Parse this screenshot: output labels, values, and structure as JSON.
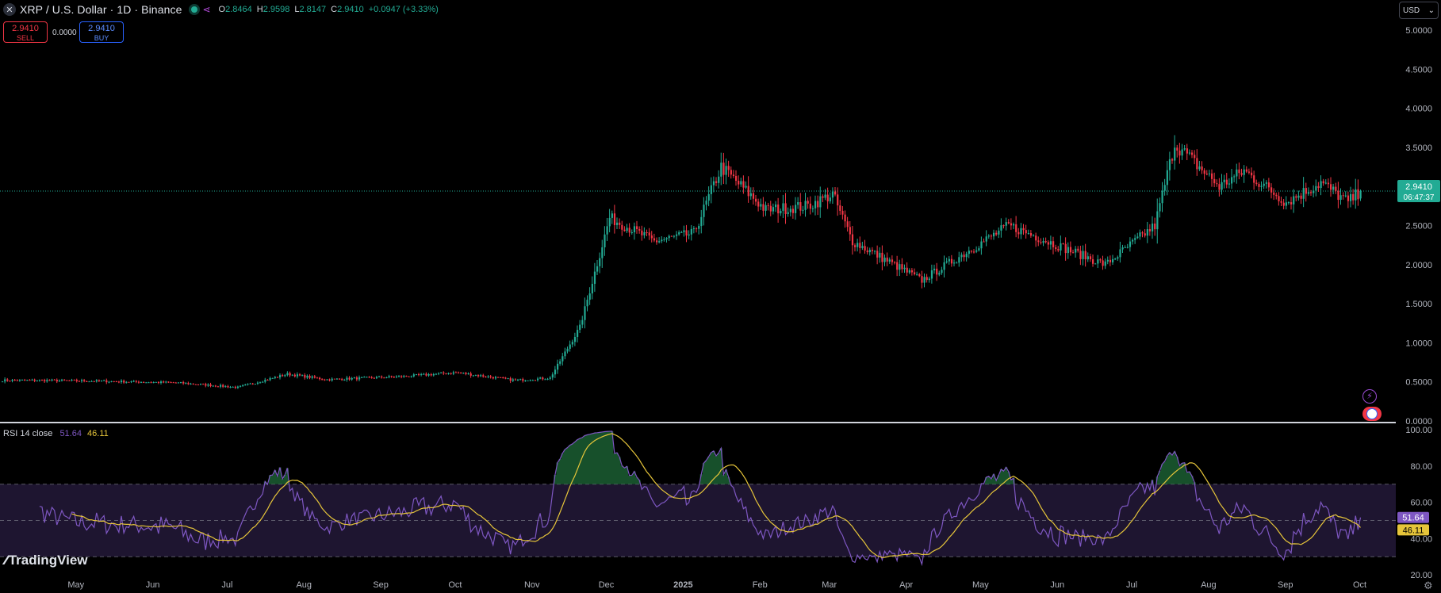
{
  "header": {
    "symbol_title": "XRP / U.S. Dollar · 1D · Binance",
    "ohlc": {
      "open_label": "O",
      "open": "2.8464",
      "high_label": "H",
      "high": "2.9598",
      "low_label": "L",
      "low": "2.8147",
      "close_label": "C",
      "close": "2.9410",
      "change": "+0.0947 (+3.33%)"
    }
  },
  "trade": {
    "sell_price": "2.9410",
    "sell_label": "SELL",
    "spread": "0.0000",
    "buy_price": "2.9410",
    "buy_label": "BUY"
  },
  "currency": {
    "label": "USD",
    "chevron": "⌄"
  },
  "price_axis": {
    "ticks": [
      "5.0000",
      "4.5000",
      "4.0000",
      "3.5000",
      "3.0000",
      "2.5000",
      "2.0000",
      "1.5000",
      "1.0000",
      "0.5000",
      "0.0000"
    ],
    "current_price": "2.9410",
    "countdown": "06:47:37"
  },
  "rsi": {
    "legend_title": "RSI 14 close",
    "value": "51.64",
    "ma_value": "46.11",
    "ticks": [
      "100.00",
      "80.00",
      "60.00",
      "40.00",
      "20.00"
    ]
  },
  "time_axis": {
    "labels": [
      "May",
      "Jun",
      "Jul",
      "Aug",
      "Sep",
      "Oct",
      "Nov",
      "Dec",
      "2025",
      "Feb",
      "Mar",
      "Apr",
      "May",
      "Jun",
      "Jul",
      "Aug",
      "Sep",
      "Oct"
    ]
  },
  "logo": {
    "text": "TradingView"
  },
  "icons": {
    "close": "close-icon",
    "live": "live-dot-icon",
    "share": "share-icon",
    "settings": "settings-icon",
    "bolt": "lightning-icon",
    "flag": "us-flag-icon",
    "logo": "tradingview-logo-icon"
  },
  "colors": {
    "up": "#22ab94",
    "down": "#f23645",
    "rsi": "#7e57c2",
    "rsi_ma": "#e6c53a",
    "rsi_band": "#1e1530",
    "price_label_bg": "#22ab94",
    "background": "#000000"
  },
  "chart_data": {
    "type": "candlestick",
    "symbol": "XRP / U.S. Dollar",
    "interval": "1D",
    "exchange": "Binance",
    "y_range": [
      0,
      5
    ],
    "x_range": [
      "2024-04",
      "2025-10"
    ],
    "close_path": [
      {
        "date": "2024-04-15",
        "price": 0.52
      },
      {
        "date": "2024-05-10",
        "price": 0.51
      },
      {
        "date": "2024-06-10",
        "price": 0.49
      },
      {
        "date": "2024-07-05",
        "price": 0.43
      },
      {
        "date": "2024-07-25",
        "price": 0.6
      },
      {
        "date": "2024-08-10",
        "price": 0.53
      },
      {
        "date": "2024-09-10",
        "price": 0.57
      },
      {
        "date": "2024-10-01",
        "price": 0.62
      },
      {
        "date": "2024-10-25",
        "price": 0.52
      },
      {
        "date": "2024-11-08",
        "price": 0.55
      },
      {
        "date": "2024-11-20",
        "price": 1.2
      },
      {
        "date": "2024-12-02",
        "price": 2.6
      },
      {
        "date": "2024-12-20",
        "price": 2.3
      },
      {
        "date": "2025-01-05",
        "price": 2.4
      },
      {
        "date": "2025-01-16",
        "price": 3.25
      },
      {
        "date": "2025-02-03",
        "price": 2.7
      },
      {
        "date": "2025-02-20",
        "price": 2.75
      },
      {
        "date": "2025-03-02",
        "price": 2.9
      },
      {
        "date": "2025-03-10",
        "price": 2.3
      },
      {
        "date": "2025-04-07",
        "price": 1.8
      },
      {
        "date": "2025-05-12",
        "price": 2.5
      },
      {
        "date": "2025-06-20",
        "price": 2.0
      },
      {
        "date": "2025-07-10",
        "price": 2.5
      },
      {
        "date": "2025-07-18",
        "price": 3.55
      },
      {
        "date": "2025-08-05",
        "price": 3.0
      },
      {
        "date": "2025-08-15",
        "price": 3.2
      },
      {
        "date": "2025-09-01",
        "price": 2.8
      },
      {
        "date": "2025-09-15",
        "price": 3.05
      },
      {
        "date": "2025-09-26",
        "price": 2.8
      },
      {
        "date": "2025-10-01",
        "price": 2.94
      }
    ],
    "last": {
      "open": 2.8464,
      "high": 2.9598,
      "low": 2.8147,
      "close": 2.941,
      "change": 0.0947,
      "change_pct": 3.33
    },
    "rsi": {
      "period": 14,
      "source": "close",
      "value": 51.64,
      "ma": 46.11,
      "upper_band": 70,
      "middle": 50,
      "lower_band": 30,
      "y_range": [
        20,
        100
      ]
    }
  }
}
